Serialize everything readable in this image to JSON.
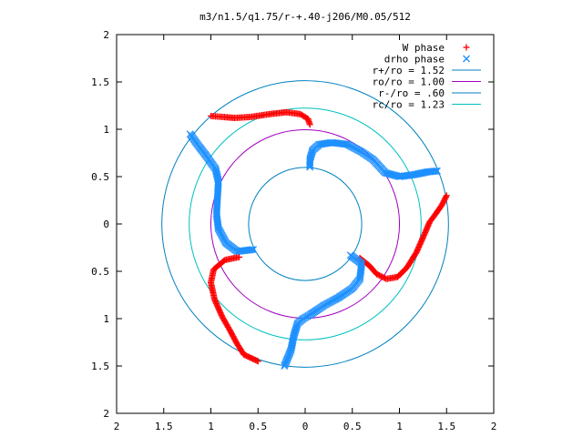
{
  "chart_data": {
    "type": "scatter",
    "title": "m3/n1.5/q1.75/r-+.40-j206/M0.05/512",
    "xlabel": "",
    "ylabel": "",
    "xlim": [
      -2,
      2
    ],
    "ylim": [
      -2,
      2
    ],
    "x_tick_labels": [
      "2",
      "1.5",
      "1",
      "0.5",
      "0",
      "0.5",
      "1",
      "1.5",
      "2"
    ],
    "y_tick_labels": [
      "2",
      "1.5",
      "1",
      "0.5",
      "0",
      "0.5",
      "1",
      "1.5",
      "2"
    ],
    "grid": false,
    "legend": "top-right",
    "series": [
      {
        "name": "W phase",
        "kind": "points",
        "marker": "plus",
        "color": "#ff0000",
        "arms": [
          {
            "points": [
              [
                0.05,
                1.05
              ],
              [
                0.03,
                1.11
              ],
              [
                -0.05,
                1.16
              ],
              [
                -0.2,
                1.18
              ],
              [
                -0.38,
                1.16
              ],
              [
                -0.58,
                1.13
              ],
              [
                -0.75,
                1.12
              ],
              [
                -0.87,
                1.13
              ],
              [
                -1.0,
                1.14
              ]
            ]
          },
          {
            "points": [
              [
                -0.7,
                -0.35
              ],
              [
                -0.85,
                -0.38
              ],
              [
                -0.97,
                -0.48
              ],
              [
                -1.0,
                -0.62
              ],
              [
                -0.96,
                -0.8
              ],
              [
                -0.88,
                -0.98
              ],
              [
                -0.8,
                -1.12
              ],
              [
                -0.72,
                -1.27
              ],
              [
                -0.65,
                -1.38
              ],
              [
                -0.5,
                -1.45
              ]
            ]
          },
          {
            "points": [
              [
                0.58,
                -0.36
              ],
              [
                0.68,
                -0.44
              ],
              [
                0.76,
                -0.53
              ],
              [
                0.86,
                -0.58
              ],
              [
                0.98,
                -0.56
              ],
              [
                1.08,
                -0.46
              ],
              [
                1.18,
                -0.3
              ],
              [
                1.26,
                -0.12
              ],
              [
                1.32,
                0.02
              ],
              [
                1.38,
                0.1
              ],
              [
                1.45,
                0.2
              ],
              [
                1.5,
                0.3
              ]
            ]
          }
        ]
      },
      {
        "name": "drho phase",
        "kind": "points",
        "marker": "x",
        "color": "#1e90ff",
        "arms": [
          {
            "points": [
              [
                0.05,
                0.6
              ],
              [
                0.05,
                0.68
              ],
              [
                0.08,
                0.78
              ],
              [
                0.15,
                0.84
              ],
              [
                0.28,
                0.86
              ],
              [
                0.45,
                0.84
              ],
              [
                0.6,
                0.76
              ],
              [
                0.72,
                0.68
              ],
              [
                0.85,
                0.54
              ],
              [
                1.0,
                0.5
              ],
              [
                1.15,
                0.52
              ],
              [
                1.3,
                0.55
              ],
              [
                1.4,
                0.56
              ]
            ]
          },
          {
            "points": [
              [
                -0.55,
                -0.27
              ],
              [
                -0.72,
                -0.29
              ],
              [
                -0.84,
                -0.2
              ],
              [
                -0.92,
                -0.05
              ],
              [
                -0.94,
                0.1
              ],
              [
                -0.93,
                0.28
              ],
              [
                -0.92,
                0.45
              ],
              [
                -0.95,
                0.58
              ],
              [
                -1.05,
                0.72
              ],
              [
                -1.15,
                0.85
              ],
              [
                -1.22,
                0.95
              ]
            ]
          },
          {
            "points": [
              [
                0.48,
                -0.33
              ],
              [
                0.6,
                -0.42
              ],
              [
                0.58,
                -0.58
              ],
              [
                0.5,
                -0.68
              ],
              [
                0.35,
                -0.78
              ],
              [
                0.2,
                -0.86
              ],
              [
                0.05,
                -0.96
              ],
              [
                -0.02,
                -1.0
              ],
              [
                -0.08,
                -1.05
              ],
              [
                -0.12,
                -1.18
              ],
              [
                -0.15,
                -1.33
              ],
              [
                -0.22,
                -1.5
              ]
            ]
          }
        ]
      },
      {
        "name": "r+/ro = 1.52",
        "kind": "circle",
        "radius": 1.52,
        "color": "#0080c0"
      },
      {
        "name": "ro/ro = 1.00",
        "kind": "circle",
        "radius": 1.0,
        "color": "#a000c0"
      },
      {
        "name": "r-/ro = .60",
        "kind": "circle",
        "radius": 0.6,
        "color": "#0080c0"
      },
      {
        "name": "rc/ro = 1.23",
        "kind": "circle",
        "radius": 1.23,
        "color": "#00c0c0"
      }
    ]
  }
}
